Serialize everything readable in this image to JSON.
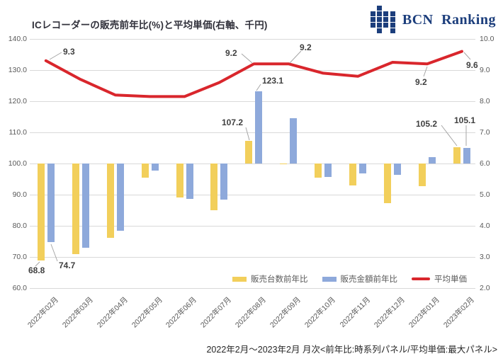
{
  "header": {
    "title": "ICレコーダーの販売前年比(%)と平均単価(右軸、千円)",
    "logo_text": "BCN Ranking"
  },
  "footer": {
    "caption": "2022年2月〜2023年2月 月次<前年比:時系列パネル/平均単価:最大パネル>"
  },
  "chart_data": {
    "type": "bar+line combo",
    "categories": [
      "2022年02月",
      "2022年03月",
      "2022年04月",
      "2022年05月",
      "2022年06月",
      "2022年07月",
      "2022年08月",
      "2022年09月",
      "2022年10月",
      "2022年11月",
      "2022年12月",
      "2023年01月",
      "2023年02月"
    ],
    "series": [
      {
        "name": "販売台数前年比",
        "type": "bar",
        "axis": "left",
        "color": "#f2cf5b",
        "baseline": 100,
        "values": [
          68.8,
          70.9,
          76.2,
          95.5,
          89.2,
          85.0,
          107.2,
          99.8,
          95.5,
          93.0,
          87.2,
          92.7,
          105.2
        ]
      },
      {
        "name": "販売金額前年比",
        "type": "bar",
        "axis": "left",
        "color": "#8ea9db",
        "baseline": 100,
        "values": [
          74.7,
          72.9,
          78.4,
          97.7,
          88.6,
          88.5,
          123.1,
          114.5,
          95.7,
          96.8,
          96.3,
          102.1,
          105.1
        ]
      },
      {
        "name": "平均単価",
        "type": "line",
        "axis": "right",
        "color": "#d9262c",
        "values": [
          9.3,
          8.7,
          8.2,
          8.15,
          8.15,
          8.6,
          9.2,
          9.2,
          8.9,
          8.8,
          9.25,
          9.2,
          9.6
        ]
      }
    ],
    "left_axis": {
      "title": "",
      "min": 60,
      "max": 140,
      "ticks": [
        "140.0",
        "130.0",
        "120.0",
        "110.0",
        "100.0",
        "90.0",
        "80.0",
        "70.0",
        "60.0"
      ]
    },
    "right_axis": {
      "title": "",
      "min": 2,
      "max": 10,
      "ticks": [
        "10.0",
        "9.0",
        "8.0",
        "7.0",
        "6.0",
        "5.0",
        "4.0",
        "3.0",
        "2.0"
      ]
    },
    "grid": "horizontal only",
    "legend_position": "inside bottom-right",
    "point_labels": [
      {
        "series": 0,
        "index": 0,
        "text": "68.8"
      },
      {
        "series": 1,
        "index": 0,
        "text": "74.7"
      },
      {
        "series": 0,
        "index": 6,
        "text": "107.2"
      },
      {
        "series": 1,
        "index": 6,
        "text": "123.1"
      },
      {
        "series": 0,
        "index": 12,
        "text": "105.2"
      },
      {
        "series": 1,
        "index": 12,
        "text": "105.1"
      },
      {
        "series": 2,
        "index": 0,
        "text": "9.3"
      },
      {
        "series": 2,
        "index": 6,
        "text": "9.2"
      },
      {
        "series": 2,
        "index": 7,
        "text": "9.2"
      },
      {
        "series": 2,
        "index": 11,
        "text": "9.2"
      },
      {
        "series": 2,
        "index": 12,
        "text": "9.6"
      }
    ]
  }
}
